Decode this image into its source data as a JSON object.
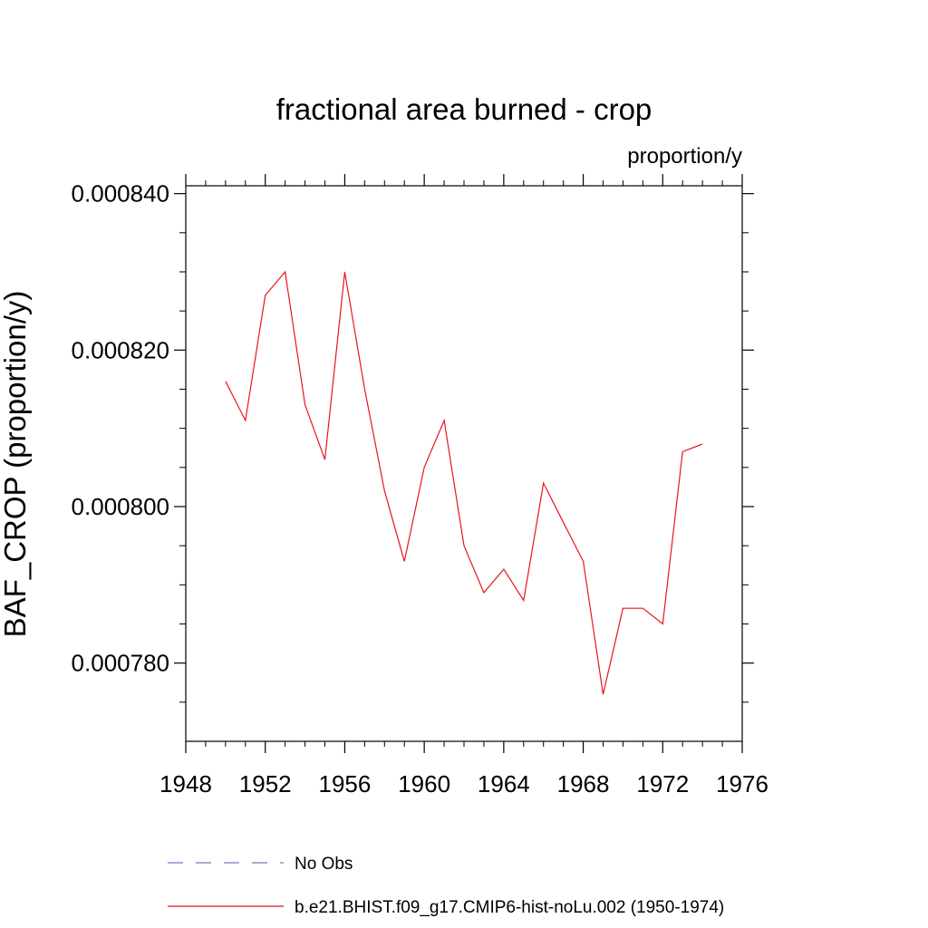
{
  "chart_data": {
    "type": "line",
    "title": "fractional area burned - crop",
    "units": "proportion/y",
    "ylabel": "BAF_CROP  (proportion/y)",
    "xlabel": "",
    "xlim": [
      1948,
      1976
    ],
    "ylim": [
      0.00077,
      0.000841
    ],
    "xticks": [
      1948,
      1952,
      1956,
      1960,
      1964,
      1968,
      1972,
      1976
    ],
    "xtick_labels": [
      "1948",
      "1952",
      "1956",
      "1960",
      "1964",
      "1968",
      "1972",
      "1976"
    ],
    "yticks": [
      0.00078,
      0.0008,
      0.00082,
      0.00084
    ],
    "ytick_labels": [
      "0.000780",
      "0.000800",
      "0.000820",
      "0.000840"
    ],
    "series": [
      {
        "name": "b.e21.BHIST.f09_g17.CMIP6-hist-noLu.002 (1950-1974)",
        "color": "#e8141c",
        "style": "solid",
        "x": [
          1950,
          1951,
          1952,
          1953,
          1954,
          1955,
          1956,
          1957,
          1958,
          1959,
          1960,
          1961,
          1962,
          1963,
          1964,
          1965,
          1966,
          1967,
          1968,
          1969,
          1970,
          1971,
          1972,
          1973,
          1974
        ],
        "values": [
          0.000816,
          0.000811,
          0.000827,
          0.00083,
          0.000813,
          0.000806,
          0.00083,
          0.000815,
          0.000802,
          0.000793,
          0.000805,
          0.000811,
          0.000795,
          0.000789,
          0.000792,
          0.000788,
          0.000803,
          0.000798,
          0.000793,
          0.000776,
          0.000787,
          0.000787,
          0.000785,
          0.000807,
          0.000808
        ]
      }
    ],
    "legend": [
      {
        "label": "No Obs",
        "color": "#7b78c8",
        "style": "dashed"
      },
      {
        "label": "b.e21.BHIST.f09_g17.CMIP6-hist-noLu.002 (1950-1974)",
        "color": "#e8141c",
        "style": "solid"
      }
    ]
  }
}
